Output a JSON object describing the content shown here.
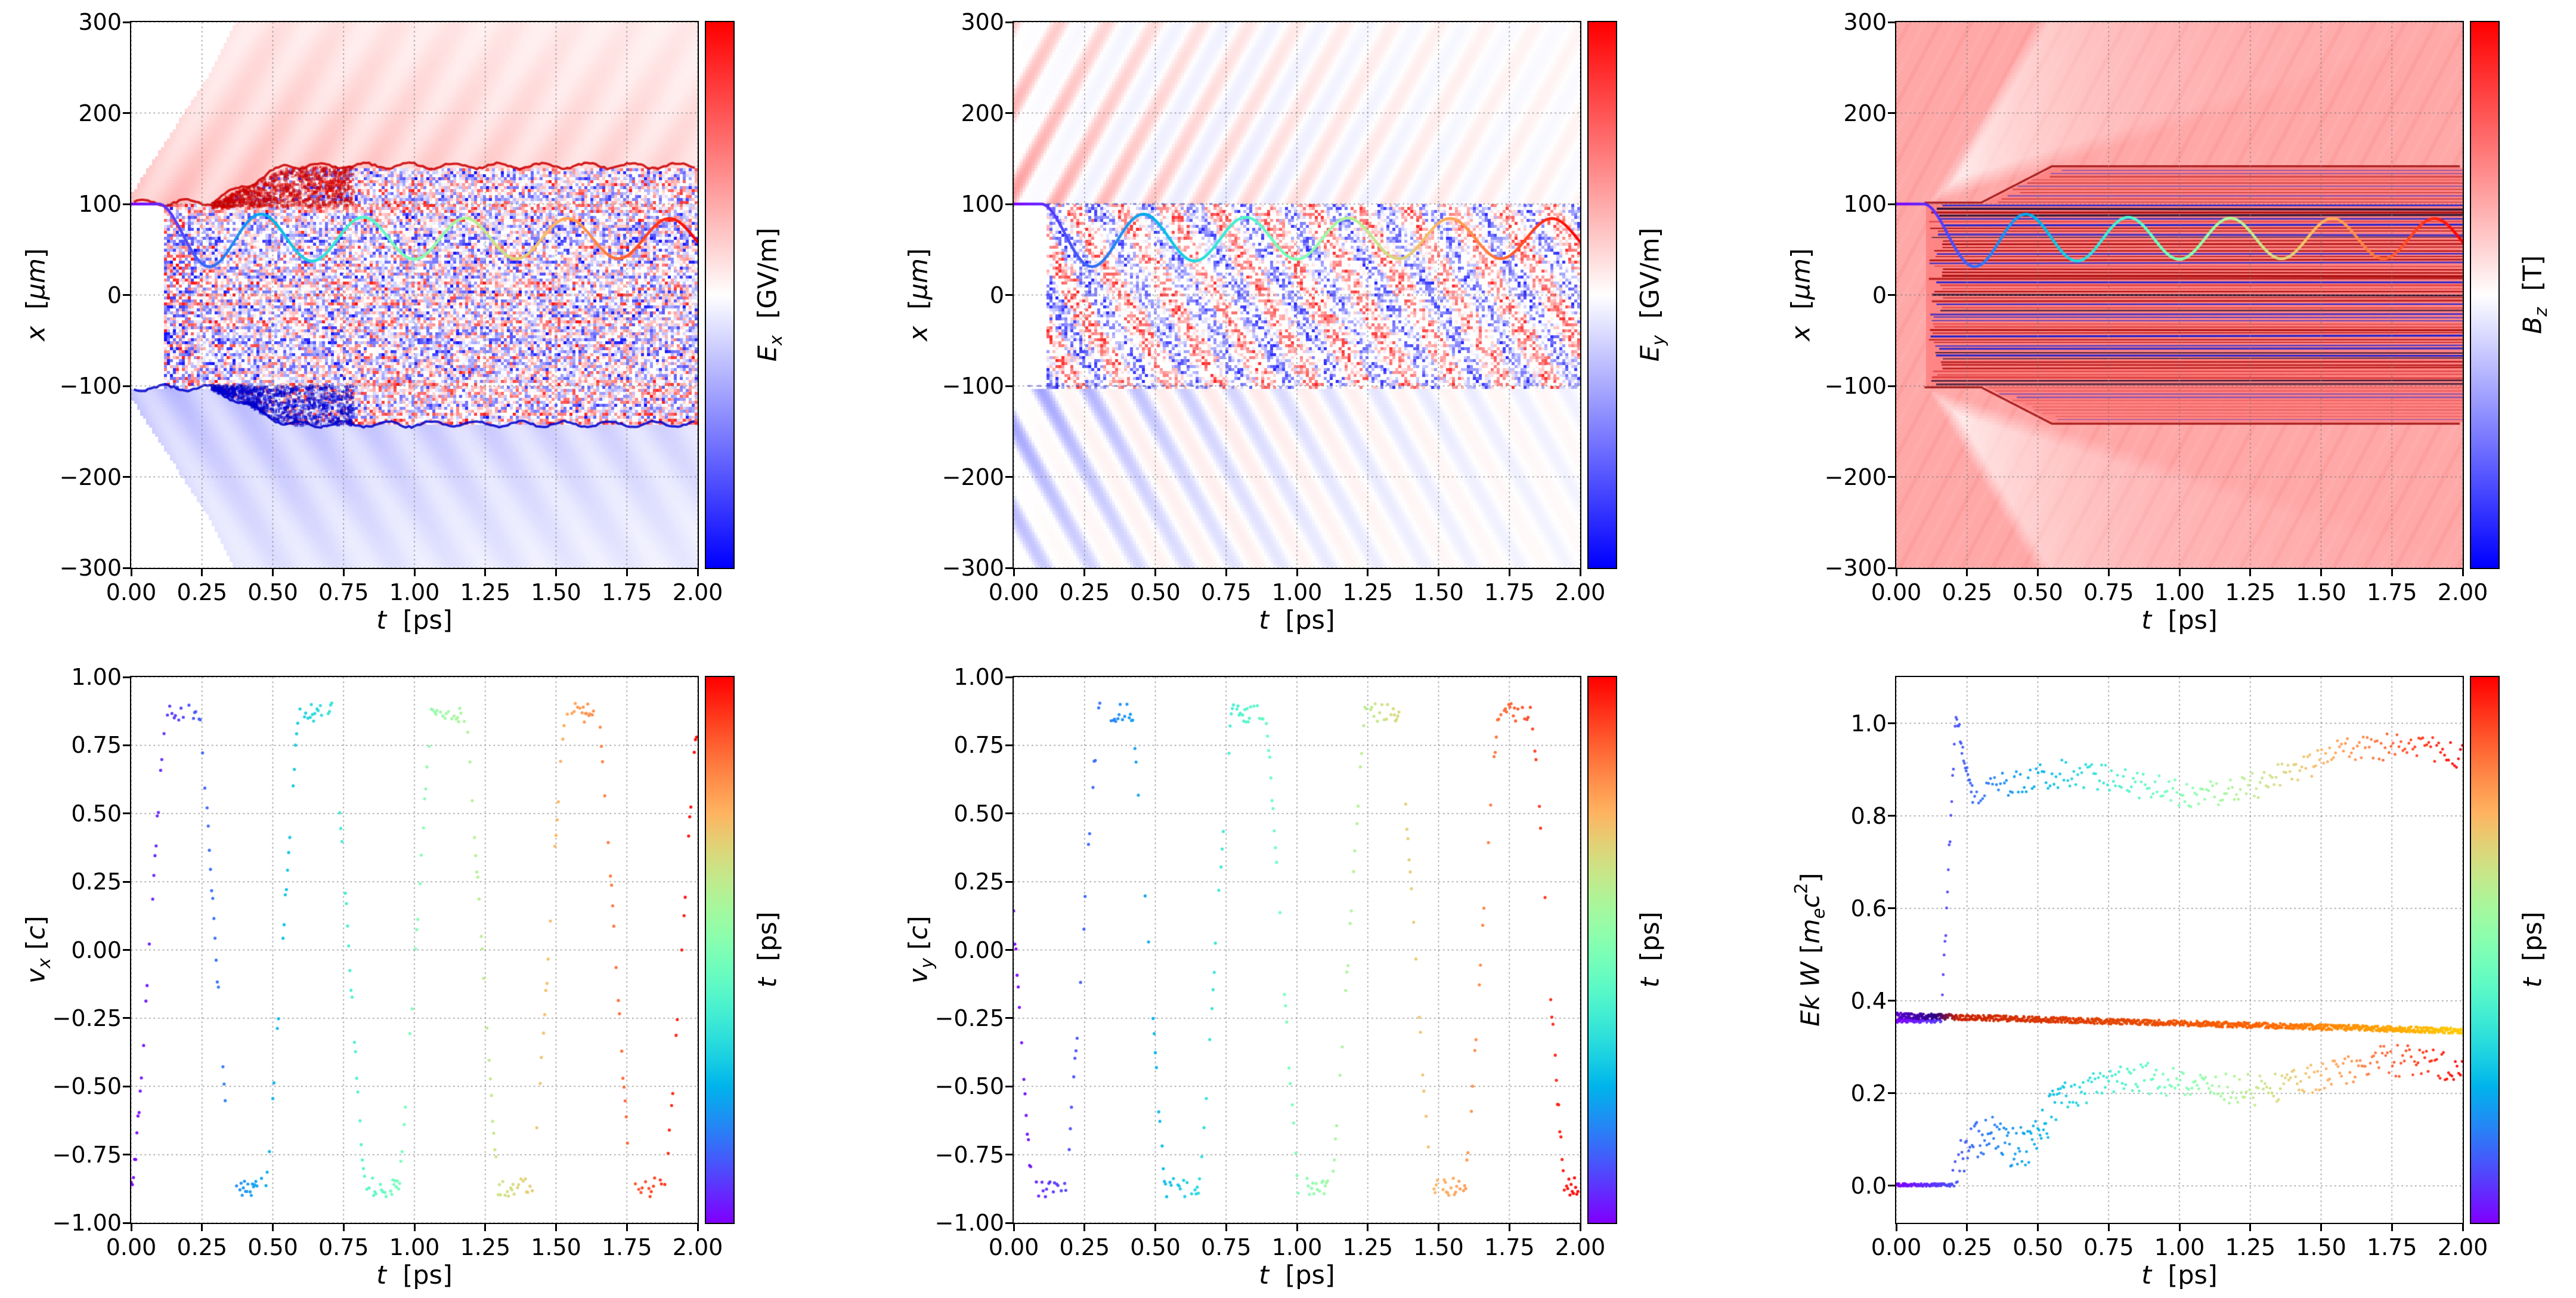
{
  "figure": {
    "background": "#ffffff",
    "text_color": "#000000",
    "grid_color": "#828282"
  },
  "chart_data": [
    {
      "id": "ex-field-map",
      "type": "heatmap",
      "render": "Ex",
      "xlabel_rich": [
        {
          "t": "t",
          "i": true
        },
        {
          "t": "  [ps]"
        }
      ],
      "ylabel_rich": [
        {
          "t": "x",
          "i": true
        },
        {
          "t": "  ["
        },
        {
          "t": "μm",
          "i": true
        },
        {
          "t": "]"
        }
      ],
      "xlim": [
        0,
        2
      ],
      "ylim": [
        -300,
        300
      ],
      "xticks": {
        "values": [
          0,
          0.25,
          0.5,
          0.75,
          1,
          1.25,
          1.5,
          1.75,
          2
        ],
        "labels": [
          "0.00",
          "0.25",
          "0.50",
          "0.75",
          "1.00",
          "1.25",
          "1.50",
          "1.75",
          "2.00"
        ]
      },
      "yticks": {
        "values": [
          -300,
          -200,
          -100,
          0,
          100,
          200,
          300
        ],
        "labels": [
          "−300",
          "−200",
          "−100",
          "0",
          "100",
          "200",
          "300"
        ]
      },
      "grid": true,
      "colorbar": {
        "colormap": "bwr",
        "label_rich": [
          {
            "t": "E",
            "i": true
          },
          {
            "t": "x",
            "i": true,
            "sub": true
          },
          {
            "t": "  [GV/m]"
          }
        ]
      },
      "field": {
        "seed": 11,
        "injection_t_ps": 0.115,
        "channel_halfwidth_um": 100,
        "channel_expanded_um": 140,
        "expansion_start_ps": 0.28,
        "expansion_rate_um_per_ps": 150,
        "wedge_slope_um_per_ps": 480,
        "pos_color": "#ff3a3a",
        "neg_color": "#3a3aff",
        "edge_pos_color": "#cc0000",
        "edge_neg_color": "#0000cc"
      },
      "trajectory": {
        "t_flat_ps": 0.1,
        "x0_um": 100,
        "base_um": 62,
        "amp_um": 22,
        "amp_extra_um": 16,
        "amp_decay_ps": 0.3,
        "period_ps": 0.36,
        "t_range_ps": [
          0,
          2
        ],
        "colormap": "rainbow"
      }
    },
    {
      "id": "ey-field-map",
      "type": "heatmap",
      "render": "Ey",
      "xlabel_rich": [
        {
          "t": "t",
          "i": true
        },
        {
          "t": "  [ps]"
        }
      ],
      "ylabel_rich": [
        {
          "t": "x",
          "i": true
        },
        {
          "t": "  ["
        },
        {
          "t": "μm",
          "i": true
        },
        {
          "t": "]"
        }
      ],
      "xlim": [
        0,
        2
      ],
      "ylim": [
        -300,
        300
      ],
      "xticks": {
        "values": [
          0,
          0.25,
          0.5,
          0.75,
          1,
          1.25,
          1.5,
          1.75,
          2
        ],
        "labels": [
          "0.00",
          "0.25",
          "0.50",
          "0.75",
          "1.00",
          "1.25",
          "1.50",
          "1.75",
          "2.00"
        ]
      },
      "yticks": {
        "values": [
          -300,
          -200,
          -100,
          0,
          100,
          200,
          300
        ],
        "labels": [
          "−300",
          "−200",
          "−100",
          "0",
          "100",
          "200",
          "300"
        ]
      },
      "grid": true,
      "colorbar": {
        "colormap": "bwr",
        "label_rich": [
          {
            "t": "E",
            "i": true
          },
          {
            "t": "y",
            "i": true,
            "sub": true
          },
          {
            "t": "  [GV/m]"
          }
        ]
      },
      "field": {
        "seed": 23,
        "injection_t_ps": 0.115,
        "channel_halfwidth_um": 100,
        "stripe_slope_um_per_ps": 560,
        "stripe_wavelength_um": 15,
        "pos_color": "#ff3a3a",
        "neg_color": "#3a3aff",
        "edge_color": "#2222cc"
      },
      "trajectory": {
        "t_flat_ps": 0.1,
        "x0_um": 100,
        "base_um": 62,
        "amp_um": 22,
        "amp_extra_um": 16,
        "amp_decay_ps": 0.3,
        "period_ps": 0.36,
        "t_range_ps": [
          0,
          2
        ],
        "colormap": "rainbow"
      }
    },
    {
      "id": "bz-field-map",
      "type": "heatmap",
      "render": "Bz",
      "xlabel_rich": [
        {
          "t": "t",
          "i": true
        },
        {
          "t": "  [ps]"
        }
      ],
      "ylabel_rich": [
        {
          "t": "x",
          "i": true
        },
        {
          "t": "  ["
        },
        {
          "t": "μm",
          "i": true
        },
        {
          "t": "]"
        }
      ],
      "xlim": [
        0,
        2
      ],
      "ylim": [
        -300,
        300
      ],
      "xticks": {
        "values": [
          0,
          0.25,
          0.5,
          0.75,
          1,
          1.25,
          1.5,
          1.75,
          2
        ],
        "labels": [
          "0.00",
          "0.25",
          "0.50",
          "0.75",
          "1.00",
          "1.25",
          "1.50",
          "1.75",
          "2.00"
        ]
      },
      "yticks": {
        "values": [
          -300,
          -200,
          -100,
          0,
          100,
          200,
          300
        ],
        "labels": [
          "−300",
          "−200",
          "−100",
          "0",
          "100",
          "200",
          "300"
        ]
      },
      "grid": true,
      "colorbar": {
        "colormap": "bwr",
        "label_rich": [
          {
            "t": "B",
            "i": true
          },
          {
            "t": "z",
            "i": true,
            "sub": true
          },
          {
            "t": "  [T]"
          }
        ]
      },
      "field": {
        "seed": 37,
        "bg_level": 0.34,
        "channel_level": 0.5,
        "injection_t_ps": 0.115,
        "channel_halfwidth_um": 100,
        "channel_expanded_um": 140,
        "expansion_start_ps": 0.3,
        "expansion_rate_um_per_ps": 160,
        "wedge_t0_ps": 0.1,
        "wedge_inner_slope": 95,
        "wedge_outer_slope": 520,
        "filament_colors": [
          "#aa0a0a",
          "#2020cc",
          "#e04040",
          "#301030"
        ],
        "filament_spacing_um": 3.5,
        "edge_color": "#990000"
      },
      "trajectory": {
        "t_flat_ps": 0.1,
        "x0_um": 100,
        "base_um": 62,
        "amp_um": 22,
        "amp_extra_um": 16,
        "amp_decay_ps": 0.3,
        "period_ps": 0.36,
        "t_range_ps": [
          0,
          2
        ],
        "colormap": "rainbow"
      }
    },
    {
      "id": "vx-scatter",
      "type": "scatter",
      "render": "osc",
      "xlabel_rich": [
        {
          "t": "t",
          "i": true
        },
        {
          "t": "  [ps]"
        }
      ],
      "ylabel_rich": [
        {
          "t": "v",
          "i": true
        },
        {
          "t": "x",
          "i": true,
          "sub": true
        },
        {
          "t": " ["
        },
        {
          "t": "c",
          "i": true
        },
        {
          "t": "]"
        }
      ],
      "xlim": [
        0,
        2
      ],
      "ylim": [
        -1,
        1
      ],
      "xticks": {
        "values": [
          0,
          0.25,
          0.5,
          0.75,
          1,
          1.25,
          1.5,
          1.75,
          2
        ],
        "labels": [
          "0.00",
          "0.25",
          "0.50",
          "0.75",
          "1.00",
          "1.25",
          "1.50",
          "1.75",
          "2.00"
        ]
      },
      "yticks": {
        "values": [
          -1,
          -0.75,
          -0.5,
          -0.25,
          0,
          0.25,
          0.5,
          0.75,
          1
        ],
        "labels": [
          "−1.00",
          "−0.75",
          "−0.50",
          "−0.25",
          "0.00",
          "0.25",
          "0.50",
          "0.75",
          "1.00"
        ]
      },
      "grid": true,
      "colorbar": {
        "colormap": "rainbow",
        "label_rich": [
          {
            "t": "t",
            "i": true
          },
          {
            "t": "  [ps]"
          }
        ]
      },
      "model": {
        "seed": 101,
        "period_ps": 0.47,
        "phase_rad": -0.85,
        "amplitude": 1.25,
        "clip": 0.87,
        "dt_ps": 0.004,
        "keep": 0.6,
        "jitter": 0.03,
        "marker_px": 2.6
      }
    },
    {
      "id": "vy-scatter",
      "type": "scatter",
      "render": "osc",
      "xlabel_rich": [
        {
          "t": "t",
          "i": true
        },
        {
          "t": "  [ps]"
        }
      ],
      "ylabel_rich": [
        {
          "t": "v",
          "i": true
        },
        {
          "t": "y",
          "i": true,
          "sub": true
        },
        {
          "t": " ["
        },
        {
          "t": "c",
          "i": true
        },
        {
          "t": "]"
        }
      ],
      "xlim": [
        0,
        2
      ],
      "ylim": [
        -1,
        1
      ],
      "xticks": {
        "values": [
          0,
          0.25,
          0.5,
          0.75,
          1,
          1.25,
          1.5,
          1.75,
          2
        ],
        "labels": [
          "0.00",
          "0.25",
          "0.50",
          "0.75",
          "1.00",
          "1.25",
          "1.50",
          "1.75",
          "2.00"
        ]
      },
      "yticks": {
        "values": [
          -1,
          -0.75,
          -0.5,
          -0.25,
          0,
          0.25,
          0.5,
          0.75,
          1
        ],
        "labels": [
          "−1.00",
          "−0.75",
          "−0.50",
          "−0.25",
          "0.00",
          "0.25",
          "0.50",
          "0.75",
          "1.00"
        ]
      },
      "grid": true,
      "colorbar": {
        "colormap": "rainbow",
        "label_rich": [
          {
            "t": "t",
            "i": true
          },
          {
            "t": "  [ps]"
          }
        ]
      },
      "model": {
        "seed": 131,
        "period_ps": 0.47,
        "phase_rad": 3.05,
        "amplitude": 1.25,
        "clip": 0.87,
        "dt_ps": 0.004,
        "keep": 0.6,
        "jitter": 0.03,
        "marker_px": 2.6
      }
    },
    {
      "id": "kinetic-energy-scatter",
      "type": "scatter",
      "render": "ek",
      "xlabel_rich": [
        {
          "t": "t",
          "i": true
        },
        {
          "t": "  [ps]"
        }
      ],
      "ylabel_rich": [
        {
          "t": "Ek W",
          "i": true
        },
        {
          "t": " ["
        },
        {
          "t": "m",
          "i": true
        },
        {
          "t": "e",
          "i": true,
          "sub": true
        },
        {
          "t": "c",
          "i": true
        },
        {
          "t": "2",
          "sup": true
        },
        {
          "t": "]"
        }
      ],
      "xlim": [
        0,
        2
      ],
      "ylim": [
        -0.08,
        1.1
      ],
      "xticks": {
        "values": [
          0,
          0.25,
          0.5,
          0.75,
          1,
          1.25,
          1.5,
          1.75,
          2
        ],
        "labels": [
          "0.00",
          "0.25",
          "0.50",
          "0.75",
          "1.00",
          "1.25",
          "1.50",
          "1.75",
          "2.00"
        ]
      },
      "yticks": {
        "values": [
          0,
          0.2,
          0.4,
          0.6,
          0.8,
          1.0
        ],
        "labels": [
          "0.0",
          "0.2",
          "0.4",
          "0.6",
          "0.8",
          "1.0"
        ]
      },
      "grid": true,
      "colorbar": {
        "colormap": "rainbow",
        "label_rich": [
          {
            "t": "t",
            "i": true
          },
          {
            "t": "  [ps]"
          }
        ]
      },
      "seed": 171,
      "marker_px": 2.4,
      "series": [
        {
          "name": "accelerated-electron",
          "color_mode": "rainbow_t",
          "segments": [
            {
              "t0": 0,
              "t1": 0.16,
              "shape": "line",
              "y0": 0.357,
              "y1": 0.357,
              "noise": 0.004,
              "dt": 0.002
            },
            {
              "t0": 0.16,
              "t1": 0.27,
              "shape": "pulse",
              "y0": 0.36,
              "peak": 1.02,
              "y1": 0.84,
              "noise": 0.02,
              "dt": 0.003
            },
            {
              "t0": 0.27,
              "t1": 2.0,
              "shape": "line",
              "y0": 0.84,
              "y1": 0.93,
              "wob": 0.035,
              "wfreq": 5.5,
              "noise": 0.03,
              "dt": 0.007
            }
          ]
        },
        {
          "name": "flat-band",
          "color_mode": "stops",
          "color_stops": [
            [
              0,
              "#5a00d0"
            ],
            [
              0.14,
              "#2a0080"
            ],
            [
              0.22,
              "#cc2200"
            ],
            [
              1.3,
              "#ff6600"
            ],
            [
              2,
              "#ffcc00"
            ]
          ],
          "segments": [
            {
              "t0": 0,
              "t1": 2.0,
              "shape": "line",
              "y0": 0.368,
              "y1": 0.335,
              "noise": 0.006,
              "dt": 0.002
            }
          ]
        },
        {
          "name": "low-energy-electron",
          "color_mode": "rainbow_t",
          "segments": [
            {
              "t0": 0,
              "t1": 0.2,
              "shape": "line",
              "y0": 0.002,
              "y1": 0.002,
              "noise": 0.003,
              "dt": 0.002
            },
            {
              "t0": 0.2,
              "t1": 0.6,
              "shape": "line",
              "y0": 0.03,
              "y1": 0.18,
              "wob": 0.04,
              "wfreq": 18,
              "noise": 0.045,
              "dt": 0.004
            },
            {
              "t0": 0.6,
              "t1": 2.0,
              "shape": "line",
              "y0": 0.2,
              "y1": 0.26,
              "wob": 0.02,
              "wfreq": 7,
              "noise": 0.035,
              "dt": 0.006
            }
          ]
        }
      ]
    }
  ]
}
